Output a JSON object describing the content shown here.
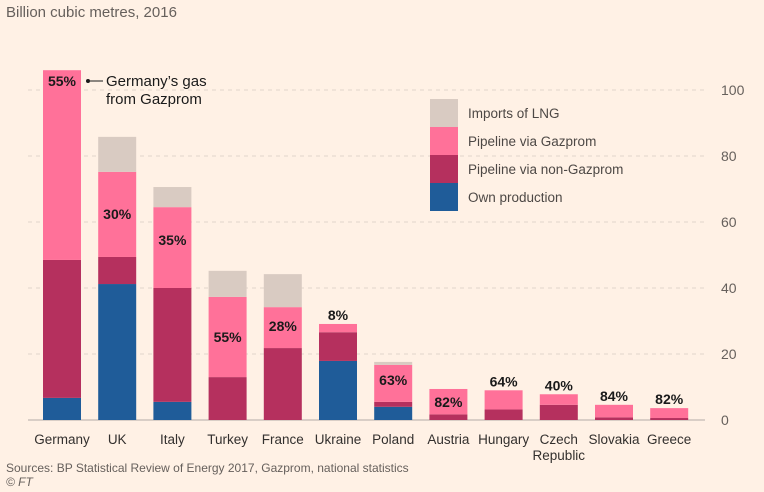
{
  "chart_data": {
    "type": "bar",
    "stacked": true,
    "subtitle": "Billion cubic metres, 2016",
    "categories": [
      "Germany",
      "UK",
      "Italy",
      "Turkey",
      "France",
      "Ukraine",
      "Poland",
      "Austria",
      "Hungary",
      "Czech Republic",
      "Slovakia",
      "Greece"
    ],
    "category_lines": [
      [
        "Germany"
      ],
      [
        "UK"
      ],
      [
        "Italy"
      ],
      [
        "Turkey"
      ],
      [
        "France"
      ],
      [
        "Ukraine"
      ],
      [
        "Poland"
      ],
      [
        "Austria"
      ],
      [
        "Hungary"
      ],
      [
        "Czech",
        "Republic"
      ],
      [
        "Slovakia"
      ],
      [
        "Greece"
      ]
    ],
    "series": [
      {
        "name": "Own production",
        "color": "#1f5c99",
        "values": [
          6.7,
          41.2,
          5.5,
          0,
          0,
          17.9,
          4.0,
          0,
          0,
          0,
          0,
          0
        ]
      },
      {
        "name": "Pipeline via non-Gazprom",
        "color": "#b5305e",
        "values": [
          41.8,
          8.2,
          34.5,
          13.0,
          21.8,
          8.7,
          1.5,
          1.7,
          3.2,
          4.6,
          0.8,
          0.6
        ]
      },
      {
        "name": "Pipeline via Gazprom",
        "color": "#ff7199",
        "values": [
          57.5,
          25.8,
          24.5,
          24.3,
          12.4,
          2.5,
          11.2,
          7.7,
          5.8,
          3.2,
          3.8,
          3.0
        ]
      },
      {
        "name": "Imports of LNG",
        "color": "#d9cbc2",
        "values": [
          0,
          10.6,
          6.1,
          7.9,
          10.0,
          0,
          0.9,
          0,
          0,
          0,
          0,
          0
        ]
      }
    ],
    "gazprom_share_labels": [
      "55%",
      "30%",
      "35%",
      "55%",
      "28%",
      "8%",
      "63%",
      "82%",
      "64%",
      "40%",
      "84%",
      "82%"
    ],
    "annotation": {
      "text_lines": [
        "Germany’s gas",
        "from Gazprom"
      ],
      "target": "Germany"
    },
    "ylim": [
      0,
      106
    ],
    "yticks": [
      0,
      20,
      40,
      60,
      80,
      100
    ],
    "y_axis_side": "right",
    "grid": true,
    "legend_order": [
      "Imports of LNG",
      "Pipeline via Gazprom",
      "Pipeline via non-Gazprom",
      "Own production"
    ],
    "legend_position": "top-right",
    "xlabel": "",
    "ylabel": ""
  },
  "footer": {
    "source": "Sources: BP Statistical Review of Energy 2017, Gazprom, national statistics",
    "credit": "© FT"
  }
}
